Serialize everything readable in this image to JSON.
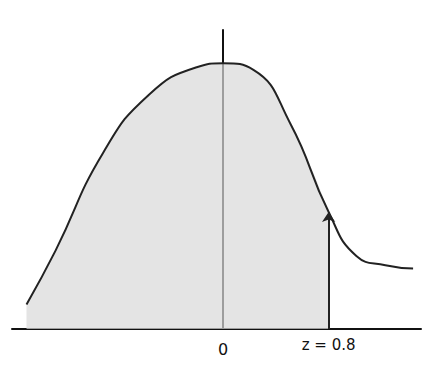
{
  "chart_data": {
    "type": "area",
    "x": [
      -1.49,
      -1.27,
      -0.91,
      -0.56,
      -0.2,
      0,
      0.23,
      0.51,
      0.8,
      1.01,
      1.23,
      1.44
    ],
    "values": [
      0.037,
      0.118,
      0.265,
      0.353,
      0.394,
      0.4,
      0.39,
      0.309,
      0.176,
      0.11,
      0.096,
      0.091
    ],
    "color": "#222222",
    "xlim": [
      -1.6,
      1.5
    ],
    "xticks": [
      0
    ],
    "ylim": [
      0,
      0.45
    ],
    "tick_labels": "x",
    "grid": false,
    "annotations": [
      {
        "text": "z = 0.8",
        "x": 0.8
      }
    ]
  }
}
